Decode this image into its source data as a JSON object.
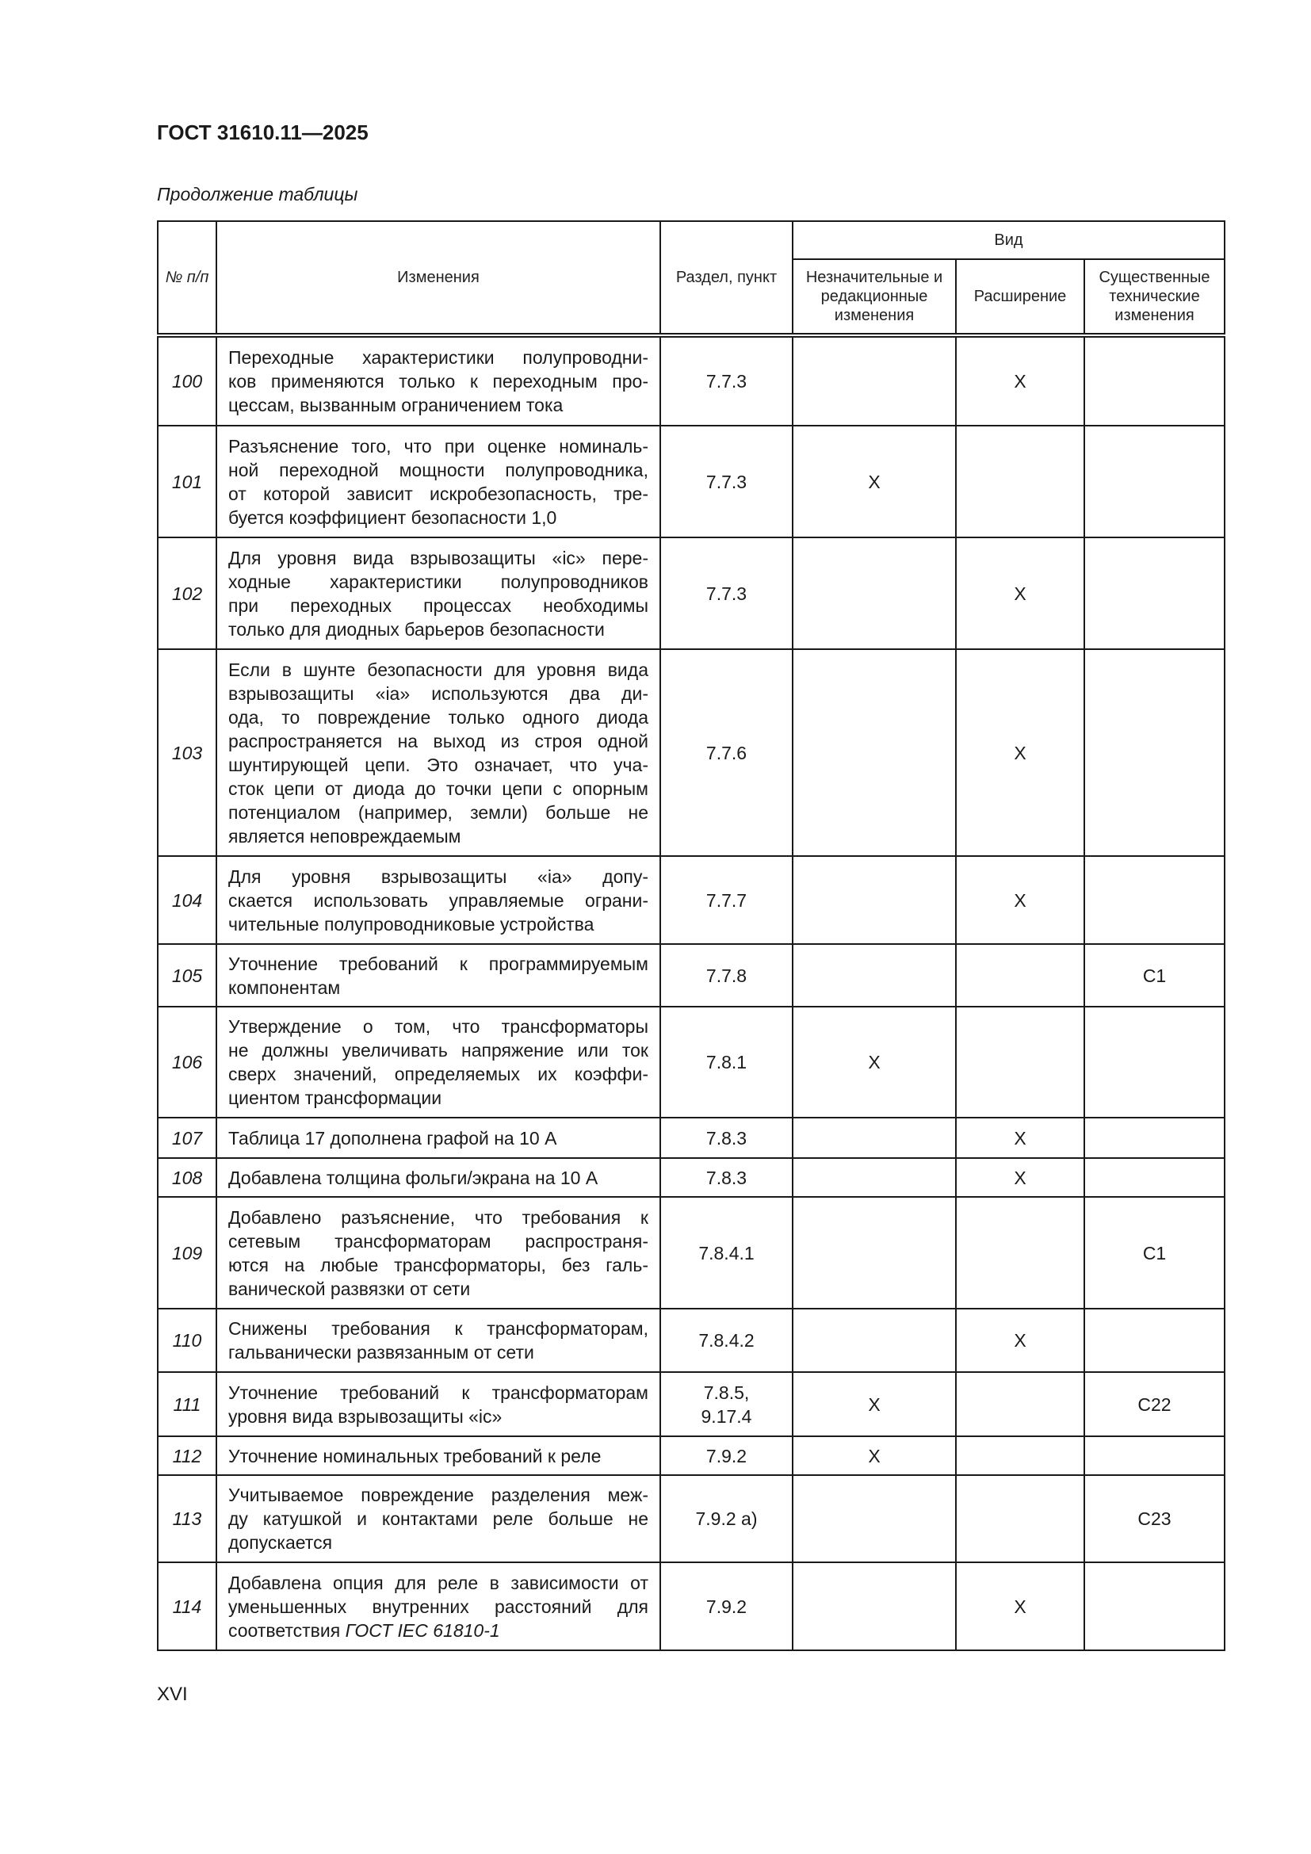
{
  "header": {
    "doc_title": "ГОСТ 31610.11—2025",
    "caption": "Продолжение таблицы"
  },
  "table": {
    "columns": {
      "num": "№ п/п",
      "changes": "Изменения",
      "section": "Раздел, пункт",
      "kind": "Вид",
      "minor": "Незначительные и редакционные изменения",
      "extension": "Расширение",
      "major": "Существенные технические изменения"
    },
    "rows": [
      {
        "num": "100",
        "lines": [
          "Переходные характеристики полупроводни-",
          "ков применяются только к переходным про-",
          "цессам, вызванным ограничением тока"
        ],
        "section": "7.7.3",
        "minor": "",
        "extension": "X",
        "major": ""
      },
      {
        "num": "101",
        "lines": [
          "Разъяснение того, что при оценке номиналь-",
          "ной переходной мощности полупроводника,",
          "от которой зависит искробезопасность, тре-",
          "буется коэффициент безопасности 1,0"
        ],
        "section": "7.7.3",
        "minor": "X",
        "extension": "",
        "major": ""
      },
      {
        "num": "102",
        "lines": [
          "Для уровня вида взрывозащиты «ic» пере-",
          "ходные характеристики полупроводников",
          "при переходных процессах необходимы",
          "только для диодных барьеров безопасности"
        ],
        "section": "7.7.3",
        "minor": "",
        "extension": "X",
        "major": ""
      },
      {
        "num": "103",
        "lines": [
          "Если в шунте безопасности для уровня вида",
          "взрывозащиты «ia» используются два ди-",
          "ода, то повреждение только одного диода",
          "распространяется на выход из строя одной",
          "шунтирующей цепи. Это означает, что уча-",
          "сток цепи от диода до точки цепи с опорным",
          "потенциалом (например, земли) больше не",
          "является неповреждаемым"
        ],
        "section": "7.7.6",
        "minor": "",
        "extension": "X",
        "major": ""
      },
      {
        "num": "104",
        "lines": [
          "Для уровня взрывозащиты «ia» допу-",
          "скается использовать управляемые ограни-",
          "чительные полупроводниковые устройства"
        ],
        "section": "7.7.7",
        "minor": "",
        "extension": "X",
        "major": ""
      },
      {
        "num": "105",
        "lines": [
          "Уточнение требований к программируемым",
          "компонентам"
        ],
        "section": "7.7.8",
        "minor": "",
        "extension": "",
        "major": "C1"
      },
      {
        "num": "106",
        "lines": [
          "Утверждение о том, что трансформаторы",
          "не должны увеличивать напряжение или ток",
          "сверх значений, определяемых их коэффи-",
          "циентом трансформации"
        ],
        "section": "7.8.1",
        "minor": "X",
        "extension": "",
        "major": ""
      },
      {
        "num": "107",
        "lines": [
          "Таблица 17 дополнена графой на 10 А"
        ],
        "section": "7.8.3",
        "minor": "",
        "extension": "X",
        "major": ""
      },
      {
        "num": "108",
        "lines": [
          "Добавлена толщина фольги/экрана на 10 А"
        ],
        "section": "7.8.3",
        "minor": "",
        "extension": "X",
        "major": ""
      },
      {
        "num": "109",
        "lines": [
          "Добавлено разъяснение, что требования к",
          "сетевым трансформаторам распространя-",
          "ются на любые трансформаторы, без галь-",
          "ванической развязки от сети"
        ],
        "section": "7.8.4.1",
        "minor": "",
        "extension": "",
        "major": "C1"
      },
      {
        "num": "110",
        "lines": [
          "Снижены требования к трансформаторам,",
          "гальванически развязанным от сети"
        ],
        "section": "7.8.4.2",
        "minor": "",
        "extension": "X",
        "major": ""
      },
      {
        "num": "111",
        "lines": [
          "Уточнение требований к трансформаторам",
          "уровня вида взрывозащиты «ic»"
        ],
        "section": "7.8.5, 9.17.4",
        "minor": "X",
        "extension": "",
        "major": "C22"
      },
      {
        "num": "112",
        "lines": [
          "Уточнение номинальных требований к реле"
        ],
        "section": "7.9.2",
        "minor": "X",
        "extension": "",
        "major": ""
      },
      {
        "num": "113",
        "lines": [
          "Учитываемое повреждение разделения меж-",
          "ду катушкой и контактами реле больше не",
          "допускается"
        ],
        "section": "7.9.2 a)",
        "minor": "",
        "extension": "",
        "major": "C23"
      },
      {
        "num": "114",
        "lines": [
          "Добавлена опция для реле в зависимости от",
          "уменьшенных внутренних расстояний для",
          "соответствия "
        ],
        "italic_suffix": "ГОСТ IEC 61810-1",
        "section": "7.9.2",
        "minor": "",
        "extension": "X",
        "major": ""
      }
    ]
  },
  "footer": {
    "page_number": "XVI"
  }
}
